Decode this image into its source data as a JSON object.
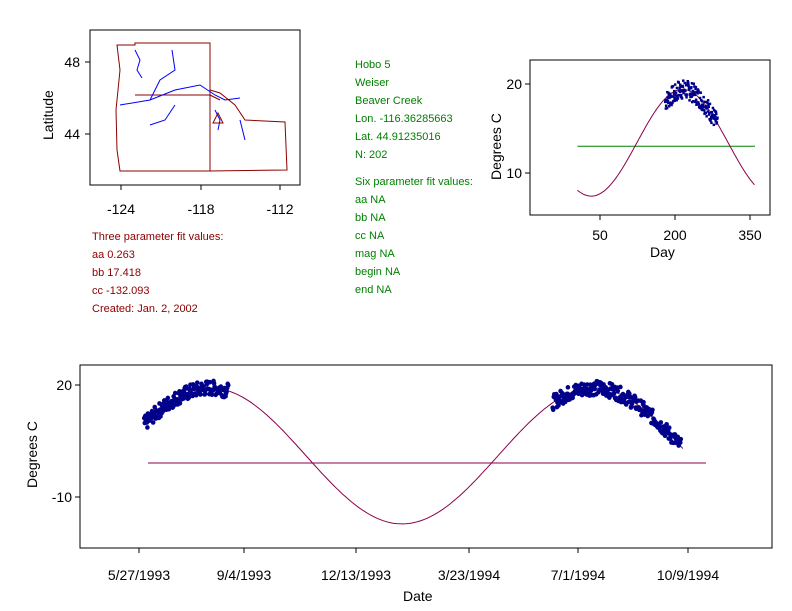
{
  "site": {
    "name": "Hobo 5",
    "basin": "Weiser",
    "stream": "Beaver Creek",
    "lon": "Lon. -116.36285663",
    "lat": "Lat. 44.91235016",
    "n": "N: 202"
  },
  "six_param": {
    "title": "Six parameter fit values:",
    "aa": "aa NA",
    "bb": "bb NA",
    "cc": "cc NA",
    "mag": "mag NA",
    "begin": "begin NA",
    "end": "end NA"
  },
  "three_param": {
    "title": "Three parameter fit values:",
    "aa": "aa 0.263",
    "bb": "bb 17.418",
    "cc": "cc -132.093",
    "created": "Created:   Jan. 2, 2002"
  },
  "colors": {
    "text_green": "#008000",
    "text_red": "#8b0000",
    "points": "#00008b",
    "curve": "#8b004b",
    "line": "#008000"
  },
  "chart_data": [
    {
      "type": "map",
      "xlabel": "",
      "ylabel": "Latitude",
      "xticks": [
        "-124",
        "-118",
        "-112"
      ],
      "yticks": [
        "48",
        "44"
      ],
      "xlim": [
        -126,
        -111
      ],
      "ylim": [
        42,
        49.5
      ],
      "site_marker": {
        "lon": -116.36,
        "lat": 44.91
      }
    },
    {
      "type": "scatter",
      "xlabel": "Day",
      "ylabel": "Degrees C",
      "xticks": [
        "50",
        "200",
        "350"
      ],
      "yticks": [
        "20",
        "10"
      ],
      "xlim": [
        -5,
        370
      ],
      "ylim": [
        5.5,
        22.5
      ],
      "mean_line": 13,
      "fit": {
        "mean": 13.4,
        "amp": 6,
        "peak_day": 215
      },
      "points_day_range": [
        180,
        285
      ]
    },
    {
      "type": "scatter",
      "xlabel": "Date",
      "ylabel": "Degrees C",
      "xticks": [
        "5/27/1993",
        "9/4/1993",
        "12/13/1993",
        "3/23/1994",
        "7/1/1994",
        "10/9/1994"
      ],
      "yticks": [
        "20",
        "-10"
      ],
      "ylim": [
        -23.5,
        25
      ],
      "mean_line": -0.9,
      "fit": {
        "mean": 1,
        "amp": 18.2
      },
      "segments": [
        [
          "6/1/1993",
          "8/20/1993"
        ],
        [
          "6/25/1994",
          "10/25/1994"
        ]
      ]
    }
  ]
}
